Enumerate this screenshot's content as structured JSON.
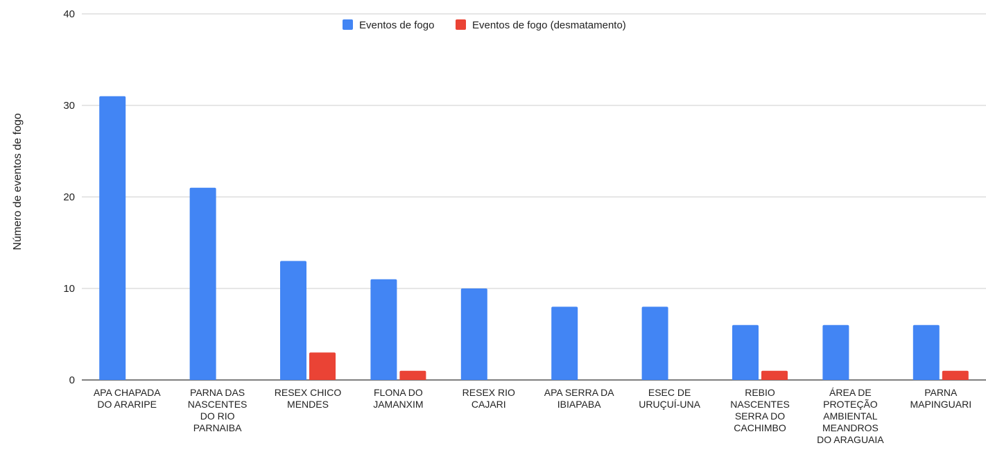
{
  "chart_data": {
    "type": "bar",
    "title": "",
    "xlabel": "",
    "ylabel": "Número de eventos de fogo",
    "ylim": [
      0,
      40
    ],
    "yticks": [
      0,
      10,
      20,
      30,
      40
    ],
    "grid": true,
    "legend_position": "top",
    "categories": [
      [
        "APA CHAPADA",
        "DO ARARIPE"
      ],
      [
        "PARNA DAS",
        "NASCENTES",
        "DO RIO",
        "PARNAIBA"
      ],
      [
        "RESEX CHICO",
        "MENDES"
      ],
      [
        "FLONA DO",
        "JAMANXIM"
      ],
      [
        "RESEX RIO",
        "CAJARI"
      ],
      [
        "APA SERRA DA",
        "IBIAPABA"
      ],
      [
        "ESEC DE",
        "URUÇUÍ-UNA"
      ],
      [
        "REBIO",
        "NASCENTES",
        "SERRA DO",
        "CACHIMBO"
      ],
      [
        "ÁREA DE",
        "PROTEÇÃO",
        "AMBIENTAL",
        "MEANDROS",
        "DO ARAGUAIA"
      ],
      [
        "PARNA",
        "MAPINGUARI"
      ]
    ],
    "series": [
      {
        "name": "Eventos de fogo",
        "color": "#4285f4",
        "values": [
          31,
          21,
          13,
          11,
          10,
          8,
          8,
          6,
          6,
          6
        ]
      },
      {
        "name": "Eventos de fogo (desmatamento)",
        "color": "#ea4335",
        "values": [
          0,
          0,
          3,
          1,
          0,
          0,
          0,
          1,
          0,
          1
        ]
      }
    ]
  }
}
